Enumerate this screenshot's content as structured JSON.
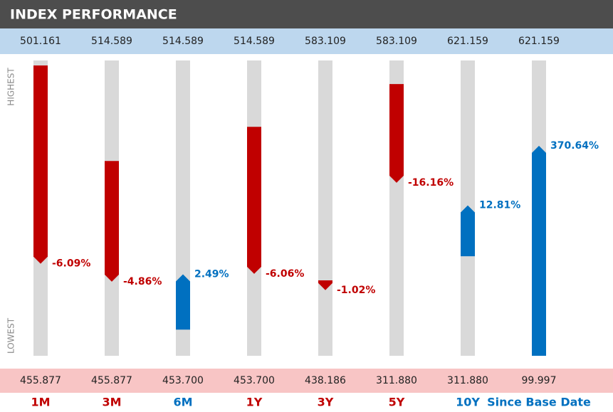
{
  "chart_data": {
    "type": "range",
    "title": "INDEX PERFORMANCE",
    "high_axis_label": "HIGHEST",
    "low_axis_label": "LOWEST",
    "categories": [
      "1M",
      "3M",
      "6M",
      "1Y",
      "3Y",
      "5Y",
      "10Y",
      "Since Base Date"
    ],
    "highs": [
      501.161,
      514.589,
      514.589,
      514.589,
      583.109,
      583.109,
      621.159,
      621.159
    ],
    "high_labels": [
      "501.161",
      "514.589",
      "514.589",
      "514.589",
      "583.109",
      "583.109",
      "621.159",
      "621.159"
    ],
    "lows": [
      455.877,
      455.877,
      453.7,
      453.7,
      438.186,
      311.88,
      311.88,
      99.997
    ],
    "low_labels": [
      "455.877",
      "455.877",
      "453.700",
      "453.700",
      "438.186",
      "311.880",
      "311.880",
      "99.997"
    ],
    "starts": [
      500.4,
      494.6,
      459.1,
      500.9,
      475.2,
      561.5,
      416.1,
      99.997
    ],
    "ends": [
      470.0,
      470.6,
      470.5,
      470.6,
      470.4,
      470.8,
      469.4,
      470.6
    ],
    "values": [
      -6.09,
      -4.86,
      2.49,
      -6.06,
      -1.02,
      -16.16,
      12.81,
      370.64
    ],
    "value_labels": [
      "-6.09%",
      "-4.86%",
      "2.49%",
      "-6.06%",
      "-1.02%",
      "-16.16%",
      "12.81%",
      "370.64%"
    ],
    "colors": {
      "down": "#c00000",
      "up": "#0070c0",
      "track": "#d9d9d9"
    }
  }
}
